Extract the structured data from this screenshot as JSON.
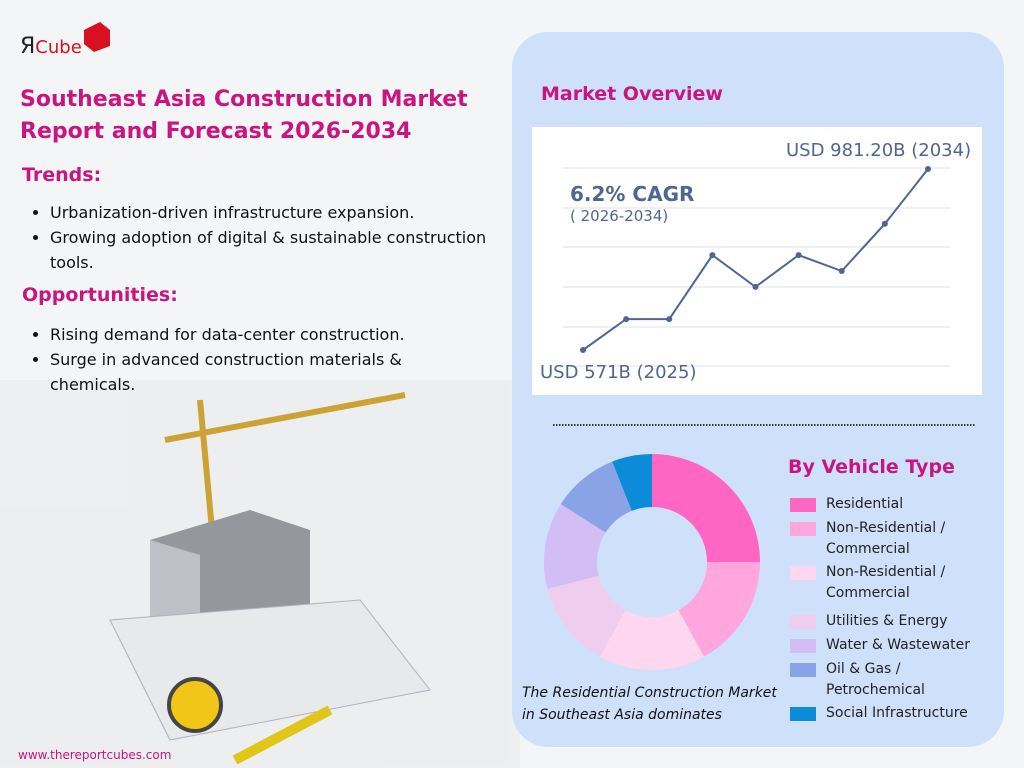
{
  "logo": {
    "mark": "Я",
    "text": "Cube"
  },
  "header": {
    "title": "Southeast Asia Construction Market Report and Forecast 2026-2034"
  },
  "trends": {
    "heading": "Trends:",
    "items": [
      "Urbanization-driven infrastructure expansion.",
      "Growing adoption of digital & sustainable construction tools."
    ]
  },
  "opportunities": {
    "heading": "Opportunities:",
    "items": [
      "Rising demand for data-center construction.",
      "Surge in advanced construction materials & chemicals."
    ]
  },
  "footer": {
    "url": "www.thereportcubes.com"
  },
  "market_overview": {
    "heading": "Market Overview",
    "chart_data": {
      "type": "line",
      "color": "#4f6693",
      "values": [
        571,
        641,
        641,
        786,
        714,
        786,
        750,
        857,
        981.2
      ],
      "annotations": {
        "end": "USD 981.20B (2034)",
        "start": "USD 571B (2025)",
        "cagr": "6.2% CAGR",
        "cagr_period": "( 2026-2034)"
      }
    }
  },
  "segments": {
    "heading": "By Vehicle Type",
    "chart_data": {
      "type": "donut",
      "series": [
        {
          "name": "Residential",
          "color": "#ff66c4",
          "values": [
            25
          ]
        },
        {
          "name": "Non-Residential / Commercial",
          "color": "#ffa6de",
          "values": [
            17
          ]
        },
        {
          "name": "Non-Residential / Commercial",
          "color": "#ffd6ef",
          "values": [
            16
          ]
        },
        {
          "name": "Utilities & Energy",
          "color": "#efcdee",
          "values": [
            13
          ]
        },
        {
          "name": "Water & Wastewater",
          "color": "#d2bdf5",
          "values": [
            13
          ]
        },
        {
          "name": "Oil & Gas / Petrochemical",
          "color": "#8aa2e6",
          "values": [
            10
          ]
        },
        {
          "name": "Social Infrastructure",
          "color": "#0b8bd8",
          "values": [
            6
          ]
        }
      ]
    },
    "note": "The Residential Construction Market in Southeast Asia dominates"
  }
}
